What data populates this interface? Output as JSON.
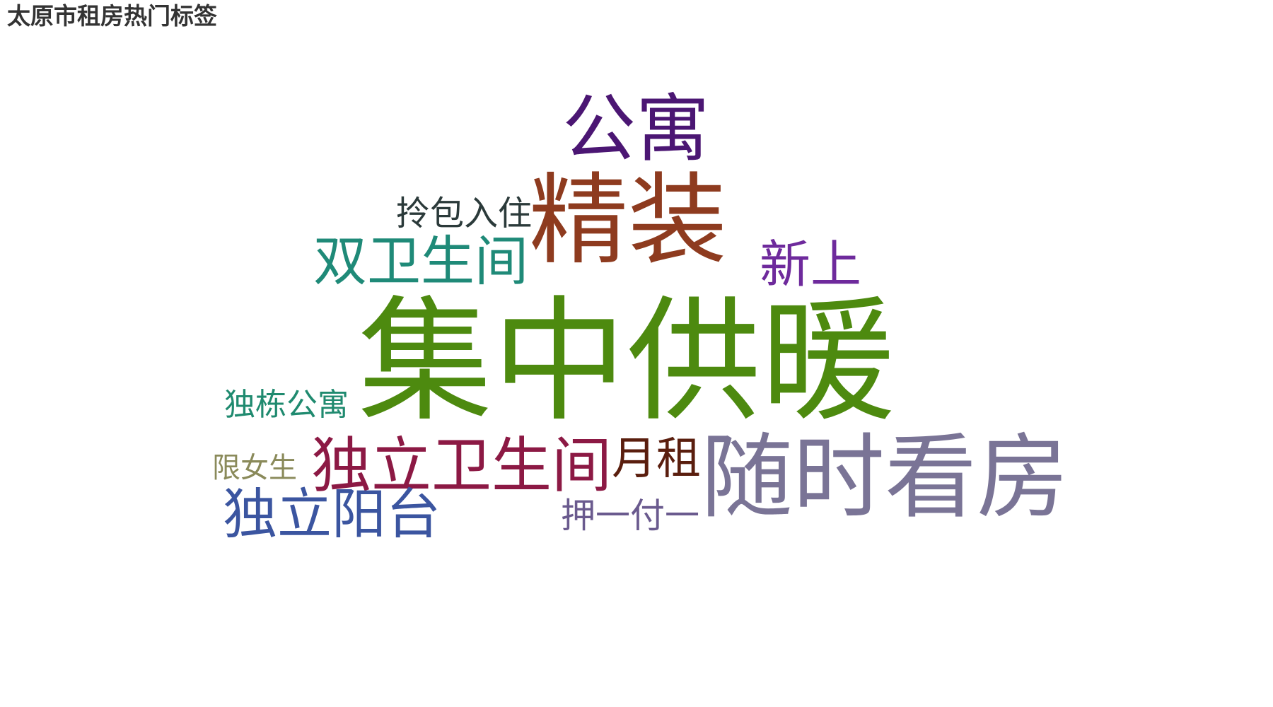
{
  "title": "太原市租房热门标签",
  "tags": [
    {
      "text": "集中供暖",
      "color": "#4d8a0f"
    },
    {
      "text": "随时看房",
      "color": "#7a7496"
    },
    {
      "text": "精装",
      "color": "#8e3b1f"
    },
    {
      "text": "公寓",
      "color": "#4b1673"
    },
    {
      "text": "独立卫生间",
      "color": "#8c1944"
    },
    {
      "text": "双卫生间",
      "color": "#1f8a78"
    },
    {
      "text": "独立阳台",
      "color": "#3b55a0"
    },
    {
      "text": "新上",
      "color": "#6e2a9c"
    },
    {
      "text": "月租",
      "color": "#5a1e0e"
    },
    {
      "text": "拎包入住",
      "color": "#2b3a3a"
    },
    {
      "text": "独栋公寓",
      "color": "#1f8a6f"
    },
    {
      "text": "押一付一",
      "color": "#6a5a8e"
    },
    {
      "text": "限女生",
      "color": "#8a8a5a"
    }
  ]
}
